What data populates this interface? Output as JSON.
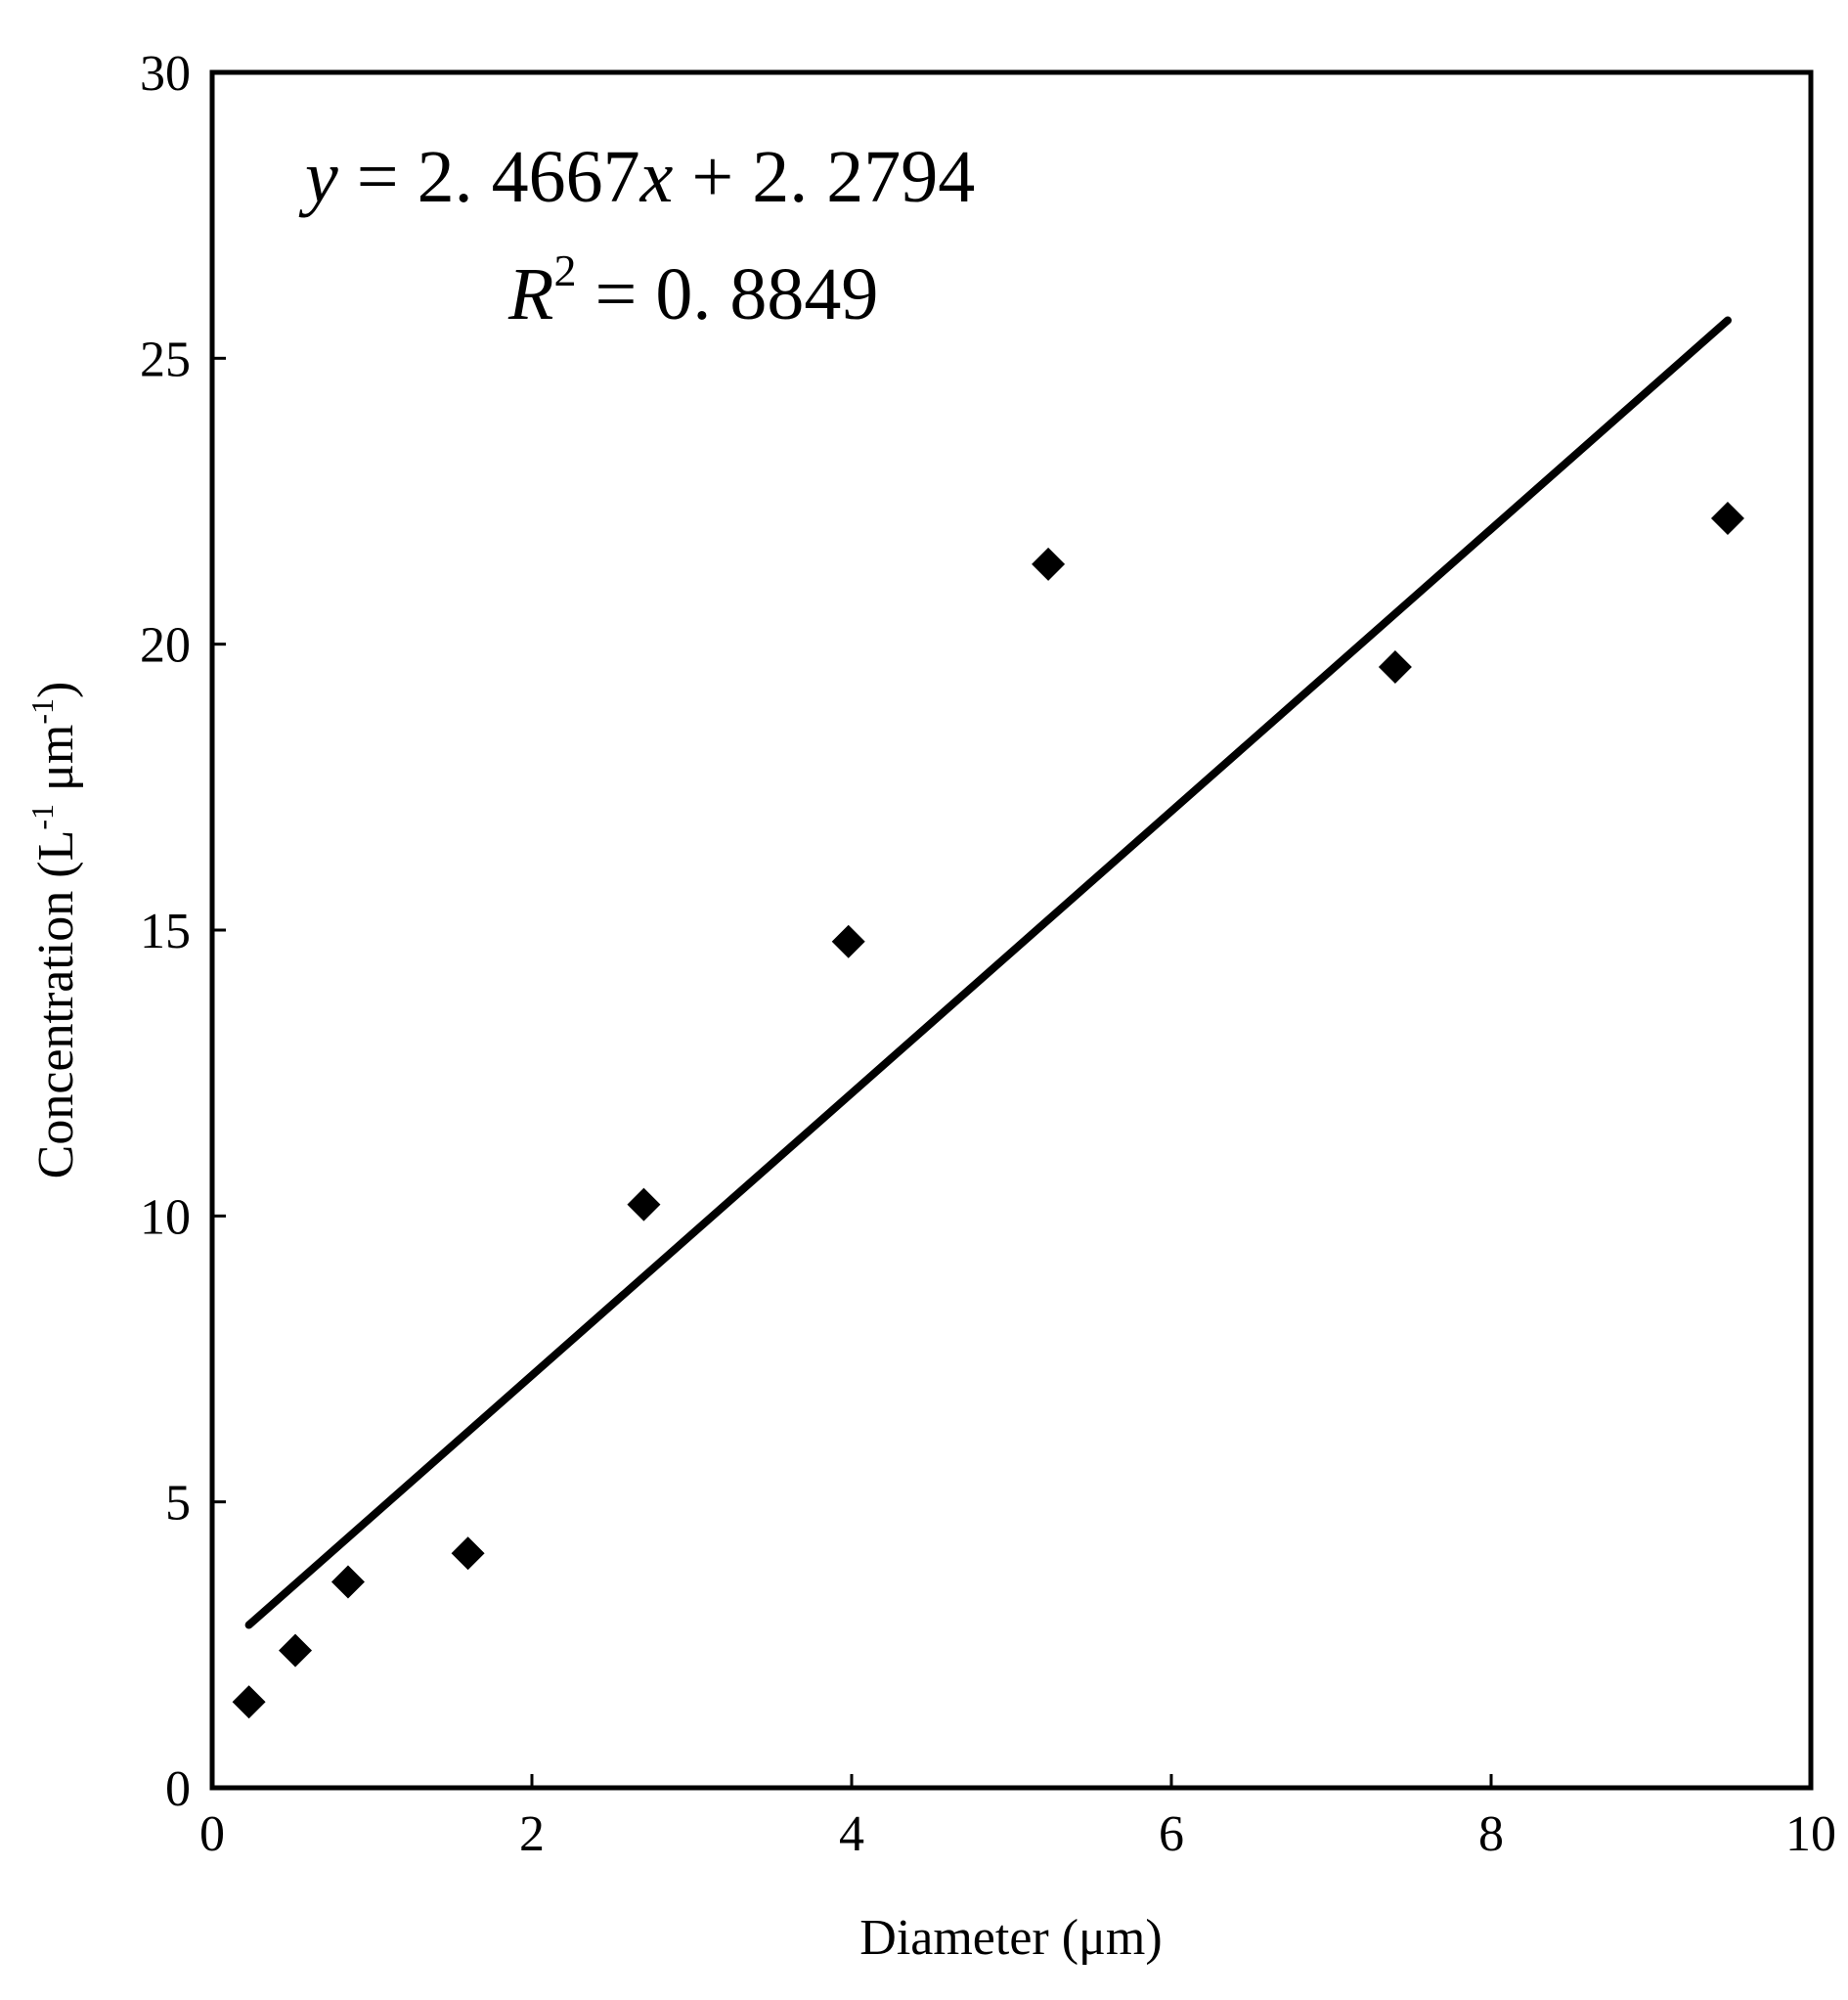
{
  "chart_data": {
    "type": "scatter",
    "xlabel": "Diameter (μm)",
    "ylabel": {
      "base": "Concentration (L",
      "sup1": "-1",
      "middle": " μm",
      "sup2": "-1",
      "end": ")"
    },
    "xlim": [
      0,
      10
    ],
    "ylim": [
      0,
      30
    ],
    "xticks": [
      0,
      2,
      4,
      6,
      8,
      10
    ],
    "yticks": [
      0,
      5,
      10,
      15,
      20,
      25,
      30
    ],
    "grid": false,
    "legend": "none",
    "marker": "diamond",
    "marker_color": "#000000",
    "line_color": "#000000",
    "series": [
      {
        "x": [
          0.23,
          0.52,
          0.85,
          1.6,
          2.7,
          3.98,
          5.23,
          7.4,
          9.48
        ],
        "y": [
          1.5,
          2.4,
          3.6,
          4.1,
          10.2,
          14.8,
          21.4,
          19.6,
          22.2
        ]
      }
    ],
    "trendline": {
      "slope": 2.4667,
      "intercept": 2.2794,
      "x_range": [
        0.23,
        9.48
      ]
    },
    "annotations": {
      "equation": {
        "var_y": "y",
        "eq_sign": " = ",
        "slope_text": "2. 4667",
        "var_x": "x",
        "plus": " + ",
        "intercept_text": "2. 2794"
      },
      "r2": {
        "var_r": "R",
        "sup": "2",
        "eq_sign": " = ",
        "value_text": "0. 8849"
      }
    }
  }
}
